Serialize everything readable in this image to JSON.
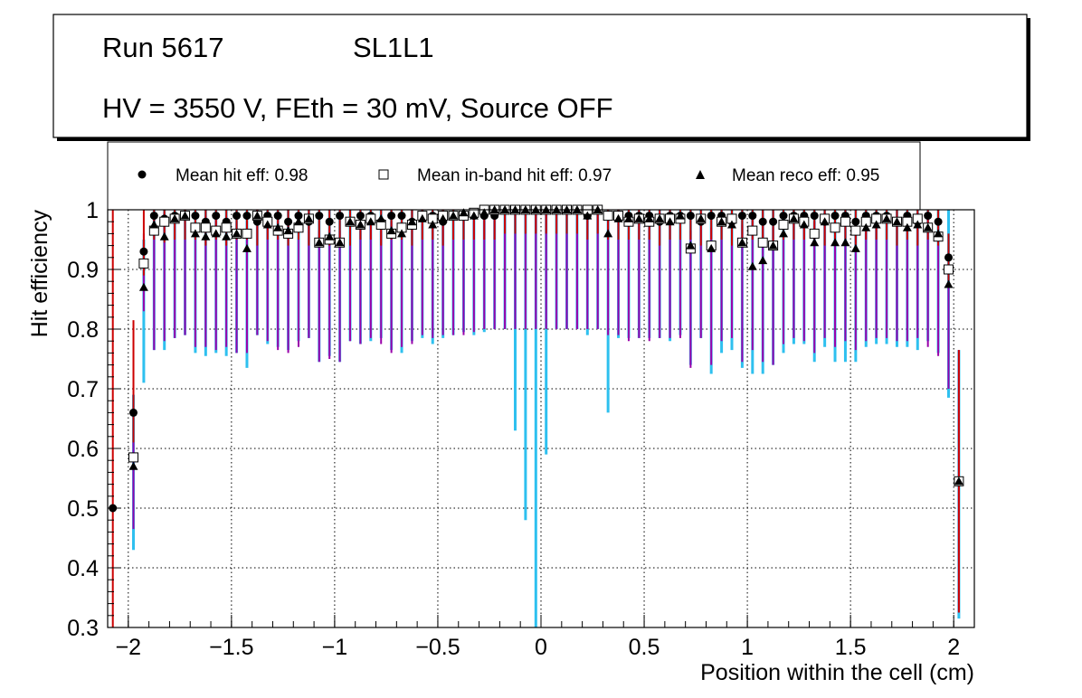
{
  "title_box": {
    "run": "Run 5617",
    "layer": "SL1L1",
    "conditions": "HV = 3550 V, FEth = 30 mV, Source OFF"
  },
  "legend": {
    "hit": "Mean hit  eff: 0.98",
    "inband": "Mean in-band hit eff: 0.97",
    "reco": "Mean reco eff: 0.95"
  },
  "colors": {
    "hit_error": "#cc0000",
    "inband_error": "#9900aa",
    "reco_error": "#2ec0ef",
    "frame": "#000000"
  },
  "chart_data": {
    "type": "scatter",
    "xlabel": "Position within the cell (cm)",
    "ylabel": "Hit efficiency",
    "xlim": [
      -2.1,
      2.1
    ],
    "ylim": [
      0.3,
      1.0
    ],
    "grid": true,
    "legend_position": "top",
    "x_ticks": [
      {
        "value": -2,
        "label": "−2"
      },
      {
        "value": -1.5,
        "label": "−1.5"
      },
      {
        "value": -1,
        "label": "−1"
      },
      {
        "value": -0.5,
        "label": "−0.5"
      },
      {
        "value": 0,
        "label": "0"
      },
      {
        "value": 0.5,
        "label": "0.5"
      },
      {
        "value": 1,
        "label": "1"
      },
      {
        "value": 1.5,
        "label": "1.5"
      },
      {
        "value": 2,
        "label": "2"
      }
    ],
    "y_ticks": [
      {
        "value": 0.3,
        "label": "0.3"
      },
      {
        "value": 0.4,
        "label": "0.4"
      },
      {
        "value": 0.5,
        "label": "0.5"
      },
      {
        "value": 0.6,
        "label": "0.6"
      },
      {
        "value": 0.7,
        "label": "0.7"
      },
      {
        "value": 0.8,
        "label": "0.8"
      },
      {
        "value": 0.9,
        "label": "0.9"
      },
      {
        "value": 1,
        "label": "1"
      }
    ],
    "x": [
      -2.075,
      -1.975,
      -1.925,
      -1.875,
      -1.825,
      -1.775,
      -1.725,
      -1.675,
      -1.625,
      -1.575,
      -1.525,
      -1.475,
      -1.425,
      -1.375,
      -1.325,
      -1.275,
      -1.225,
      -1.175,
      -1.125,
      -1.075,
      -1.025,
      -0.975,
      -0.925,
      -0.875,
      -0.825,
      -0.775,
      -0.725,
      -0.675,
      -0.625,
      -0.575,
      -0.525,
      -0.475,
      -0.425,
      -0.375,
      -0.325,
      -0.275,
      -0.225,
      -0.175,
      -0.125,
      -0.075,
      -0.025,
      0.025,
      0.075,
      0.125,
      0.175,
      0.225,
      0.275,
      0.325,
      0.375,
      0.425,
      0.475,
      0.525,
      0.575,
      0.625,
      0.675,
      0.725,
      0.775,
      0.825,
      0.875,
      0.925,
      0.975,
      1.025,
      1.075,
      1.125,
      1.175,
      1.225,
      1.275,
      1.325,
      1.375,
      1.425,
      1.475,
      1.525,
      1.575,
      1.625,
      1.675,
      1.725,
      1.775,
      1.825,
      1.875,
      1.925,
      1.975,
      2.025
    ],
    "series": [
      {
        "name": "Mean hit  eff: 0.98",
        "marker": "circle",
        "values": [
          0.5,
          0.66,
          0.93,
          0.99,
          0.985,
          0.99,
          0.99,
          0.99,
          0.98,
          0.99,
          0.98,
          0.99,
          0.99,
          0.98,
          0.99,
          0.99,
          0.98,
          0.99,
          0.98,
          0.99,
          0.98,
          0.99,
          0.98,
          0.99,
          0.99,
          0.98,
          0.99,
          0.99,
          0.98,
          0.99,
          0.99,
          0.98,
          0.99,
          0.99,
          0.99,
          0.99,
          0.99,
          1.0,
          1.0,
          1.0,
          1.0,
          1.0,
          1.0,
          1.0,
          1.0,
          0.99,
          1.0,
          0.99,
          0.99,
          0.99,
          0.99,
          0.99,
          0.98,
          0.99,
          0.99,
          0.99,
          0.98,
          0.99,
          0.99,
          0.98,
          0.99,
          0.99,
          0.98,
          0.98,
          0.99,
          0.99,
          0.99,
          0.99,
          0.98,
          0.99,
          0.99,
          0.98,
          0.99,
          0.99,
          0.99,
          0.98,
          0.99,
          0.98,
          0.99,
          0.98,
          0.92,
          0.545
        ],
        "err_low": [
          0.5,
          0.05,
          0.04,
          0.04,
          0.04,
          0.04,
          0.04,
          0.04,
          0.04,
          0.04,
          0.04,
          0.04,
          0.04,
          0.04,
          0.04,
          0.04,
          0.04,
          0.04,
          0.04,
          0.04,
          0.04,
          0.04,
          0.04,
          0.04,
          0.04,
          0.04,
          0.04,
          0.04,
          0.04,
          0.04,
          0.04,
          0.04,
          0.04,
          0.04,
          0.04,
          0.04,
          0.04,
          0.04,
          0.04,
          0.04,
          0.04,
          0.04,
          0.04,
          0.04,
          0.04,
          0.04,
          0.04,
          0.04,
          0.04,
          0.04,
          0.04,
          0.04,
          0.04,
          0.04,
          0.04,
          0.04,
          0.04,
          0.04,
          0.04,
          0.04,
          0.04,
          0.04,
          0.04,
          0.04,
          0.04,
          0.04,
          0.04,
          0.04,
          0.04,
          0.04,
          0.04,
          0.04,
          0.04,
          0.04,
          0.04,
          0.04,
          0.04,
          0.04,
          0.04,
          0.04,
          0.05,
          0.22
        ],
        "err_high": [
          0.5,
          0.155,
          0.07,
          0.01,
          0.015,
          0.01,
          0.01,
          0.01,
          0.02,
          0.01,
          0.02,
          0.01,
          0.01,
          0.02,
          0.01,
          0.01,
          0.02,
          0.01,
          0.02,
          0.01,
          0.02,
          0.01,
          0.02,
          0.01,
          0.01,
          0.02,
          0.01,
          0.01,
          0.02,
          0.01,
          0.01,
          0.02,
          0.01,
          0.01,
          0.01,
          0.01,
          0.01,
          0.0,
          0.0,
          0.0,
          0.0,
          0.0,
          0.0,
          0.0,
          0.0,
          0.01,
          0.0,
          0.01,
          0.01,
          0.01,
          0.01,
          0.01,
          0.02,
          0.01,
          0.01,
          0.01,
          0.02,
          0.01,
          0.01,
          0.02,
          0.01,
          0.01,
          0.02,
          0.02,
          0.01,
          0.01,
          0.01,
          0.01,
          0.02,
          0.01,
          0.01,
          0.02,
          0.01,
          0.01,
          0.01,
          0.02,
          0.01,
          0.02,
          0.01,
          0.02,
          0.04,
          0.22
        ]
      },
      {
        "name": "Mean in-band hit eff: 0.97",
        "marker": "open-square",
        "values": [
          null,
          0.585,
          0.91,
          0.965,
          0.98,
          0.985,
          0.99,
          0.97,
          0.97,
          0.965,
          0.97,
          0.96,
          0.96,
          0.99,
          0.98,
          0.965,
          0.96,
          0.97,
          0.985,
          0.945,
          0.95,
          0.945,
          0.98,
          0.975,
          0.985,
          0.975,
          0.96,
          0.97,
          0.975,
          0.99,
          0.985,
          0.99,
          0.99,
          0.99,
          0.995,
          1.0,
          1.0,
          1.0,
          1.0,
          1.0,
          1.0,
          1.0,
          1.0,
          1.0,
          1.0,
          1.0,
          1.0,
          0.99,
          0.99,
          0.98,
          0.985,
          0.98,
          0.985,
          0.985,
          0.985,
          0.935,
          0.985,
          0.94,
          0.98,
          0.985,
          0.945,
          0.965,
          0.945,
          0.94,
          0.975,
          0.985,
          0.98,
          0.96,
          0.985,
          0.97,
          0.98,
          0.965,
          0.98,
          0.985,
          0.985,
          0.98,
          0.98,
          0.985,
          0.97,
          0.955,
          0.9,
          0.545
        ],
        "err_low": [
          0,
          0.12,
          0.08,
          0.2,
          0.2,
          0.2,
          0.2,
          0.2,
          0.2,
          0.2,
          0.2,
          0.2,
          0.2,
          0.2,
          0.2,
          0.2,
          0.2,
          0.2,
          0.2,
          0.2,
          0.2,
          0.2,
          0.2,
          0.2,
          0.2,
          0.2,
          0.2,
          0.2,
          0.2,
          0.2,
          0.2,
          0.2,
          0.2,
          0.2,
          0.2,
          0.2,
          0.2,
          0.2,
          0.2,
          0.2,
          0.2,
          0.2,
          0.2,
          0.2,
          0.2,
          0.2,
          0.2,
          0.2,
          0.2,
          0.2,
          0.2,
          0.2,
          0.2,
          0.2,
          0.2,
          0.2,
          0.2,
          0.2,
          0.2,
          0.2,
          0.2,
          0.2,
          0.2,
          0.2,
          0.2,
          0.2,
          0.2,
          0.2,
          0.2,
          0.2,
          0.2,
          0.2,
          0.2,
          0.2,
          0.2,
          0.2,
          0.2,
          0.2,
          0.2,
          0.2,
          0.2,
          0.22
        ],
        "err_high": [
          0,
          0.05,
          0.05,
          0.02,
          0.015,
          0.01,
          0.01,
          0.02,
          0.02,
          0.02,
          0.02,
          0.02,
          0.02,
          0.01,
          0.01,
          0.02,
          0.02,
          0.02,
          0.01,
          0.02,
          0.02,
          0.02,
          0.01,
          0.01,
          0.01,
          0.01,
          0.02,
          0.02,
          0.01,
          0.01,
          0.01,
          0.01,
          0.01,
          0.01,
          0.005,
          0.0,
          0.0,
          0.0,
          0.0,
          0.0,
          0.0,
          0.0,
          0.0,
          0.0,
          0.0,
          0.0,
          0.0,
          0.01,
          0.01,
          0.01,
          0.01,
          0.01,
          0.01,
          0.01,
          0.01,
          0.03,
          0.01,
          0.03,
          0.01,
          0.01,
          0.03,
          0.02,
          0.03,
          0.03,
          0.01,
          0.01,
          0.01,
          0.02,
          0.01,
          0.02,
          0.01,
          0.02,
          0.01,
          0.01,
          0.01,
          0.01,
          0.01,
          0.01,
          0.02,
          0.02,
          0.04,
          0.22
        ]
      },
      {
        "name": "Mean reco eff: 0.95",
        "marker": "triangle",
        "values": [
          null,
          0.57,
          0.87,
          0.975,
          0.955,
          0.985,
          0.99,
          0.96,
          0.955,
          0.96,
          0.955,
          0.96,
          0.935,
          0.99,
          0.975,
          0.97,
          0.965,
          0.98,
          0.985,
          0.945,
          0.955,
          0.945,
          0.98,
          0.975,
          0.98,
          0.985,
          0.965,
          0.96,
          0.98,
          0.985,
          0.975,
          0.985,
          0.99,
          0.995,
          0.99,
          0.995,
          1.0,
          1.0,
          1.0,
          1.0,
          1.0,
          1.0,
          1.0,
          1.0,
          1.0,
          0.99,
          1.0,
          0.96,
          0.985,
          0.985,
          0.985,
          0.985,
          0.985,
          0.98,
          0.99,
          0.94,
          0.985,
          0.935,
          0.98,
          0.975,
          0.945,
          0.905,
          0.915,
          0.94,
          0.96,
          0.985,
          0.975,
          0.945,
          0.98,
          0.945,
          0.945,
          0.935,
          0.97,
          0.975,
          0.985,
          0.98,
          0.97,
          0.975,
          0.97,
          0.96,
          0.875,
          0.545
        ],
        "err_low": [
          0,
          0.14,
          0.16,
          0.21,
          0.19,
          0.2,
          0.2,
          0.2,
          0.2,
          0.2,
          0.2,
          0.2,
          0.2,
          0.2,
          0.2,
          0.2,
          0.2,
          0.2,
          0.2,
          0.2,
          0.2,
          0.2,
          0.2,
          0.2,
          0.2,
          0.2,
          0.2,
          0.2,
          0.2,
          0.2,
          0.2,
          0.2,
          0.2,
          0.2,
          0.2,
          0.2,
          0.2,
          0.2,
          0.37,
          0.52,
          0.7,
          0.41,
          0.2,
          0.2,
          0.2,
          0.2,
          0.2,
          0.3,
          0.2,
          0.2,
          0.2,
          0.2,
          0.2,
          0.2,
          0.2,
          0.2,
          0.2,
          0.21,
          0.22,
          0.21,
          0.21,
          0.18,
          0.19,
          0.2,
          0.2,
          0.21,
          0.2,
          0.2,
          0.21,
          0.2,
          0.2,
          0.19,
          0.2,
          0.2,
          0.21,
          0.21,
          0.2,
          0.21,
          0.19,
          0.2,
          0.19,
          0.23
        ],
        "err_high": [
          0,
          0.12,
          0.08,
          0.025,
          0.045,
          0.015,
          0.01,
          0.04,
          0.045,
          0.04,
          0.045,
          0.04,
          0.065,
          0.01,
          0.025,
          0.03,
          0.035,
          0.02,
          0.015,
          0.055,
          0.045,
          0.055,
          0.02,
          0.025,
          0.02,
          0.015,
          0.035,
          0.04,
          0.02,
          0.015,
          0.025,
          0.015,
          0.01,
          0.005,
          0.01,
          0.005,
          0.0,
          0.0,
          0.0,
          0.0,
          0.0,
          0.0,
          0.0,
          0.0,
          0.0,
          0.01,
          0.0,
          0.04,
          0.015,
          0.015,
          0.015,
          0.015,
          0.015,
          0.02,
          0.01,
          0.06,
          0.015,
          0.065,
          0.02,
          0.025,
          0.055,
          0.095,
          0.085,
          0.06,
          0.04,
          0.015,
          0.025,
          0.055,
          0.02,
          0.055,
          0.055,
          0.065,
          0.03,
          0.025,
          0.015,
          0.02,
          0.03,
          0.025,
          0.03,
          0.04,
          0.125,
          0.22
        ]
      }
    ]
  }
}
